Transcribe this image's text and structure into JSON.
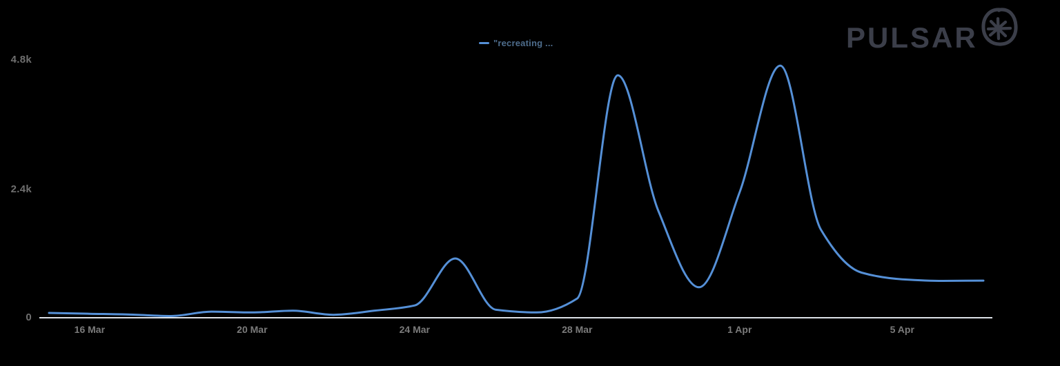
{
  "header": {
    "logo_text": "PULSAR"
  },
  "legend": {
    "label": "\"recreating ...",
    "series_color": "#5590d7"
  },
  "axis": {
    "line_color": "#dde2e8",
    "x_label_color": "#7b7b7b",
    "y_label_color": "#6f6f6f"
  },
  "chart_data": {
    "type": "line",
    "title": "",
    "xlabel": "",
    "ylabel": "",
    "x": [
      "15 Mar",
      "16 Mar",
      "17 Mar",
      "18 Mar",
      "19 Mar",
      "20 Mar",
      "21 Mar",
      "22 Mar",
      "23 Mar",
      "24 Mar",
      "25 Mar",
      "26 Mar",
      "27 Mar",
      "28 Mar",
      "29 Mar",
      "30 Mar",
      "31 Mar",
      "1 Apr",
      "2 Apr",
      "3 Apr",
      "4 Apr",
      "5 Apr",
      "6 Apr",
      "7 Apr"
    ],
    "series": [
      {
        "name": "\"recreating ...",
        "color": "#5590d7",
        "values": [
          90,
          75,
          60,
          32,
          115,
          100,
          132,
          55,
          132,
          230,
          1110,
          150,
          100,
          360,
          4540,
          2000,
          570,
          2350,
          4720,
          1650,
          845,
          720,
          690,
          695
        ]
      }
    ],
    "ylim": [
      0,
      4800
    ],
    "y_ticks": [
      "0",
      "2.4k",
      "4.8k"
    ],
    "x_ticks": [
      {
        "index": 1,
        "label": "16 Mar"
      },
      {
        "index": 5,
        "label": "20 Mar"
      },
      {
        "index": 9,
        "label": "24 Mar"
      },
      {
        "index": 13,
        "label": "28 Mar"
      },
      {
        "index": 17,
        "label": "1 Apr"
      },
      {
        "index": 21,
        "label": "5 Apr"
      }
    ],
    "grid": false,
    "legend_position": "top-center"
  }
}
